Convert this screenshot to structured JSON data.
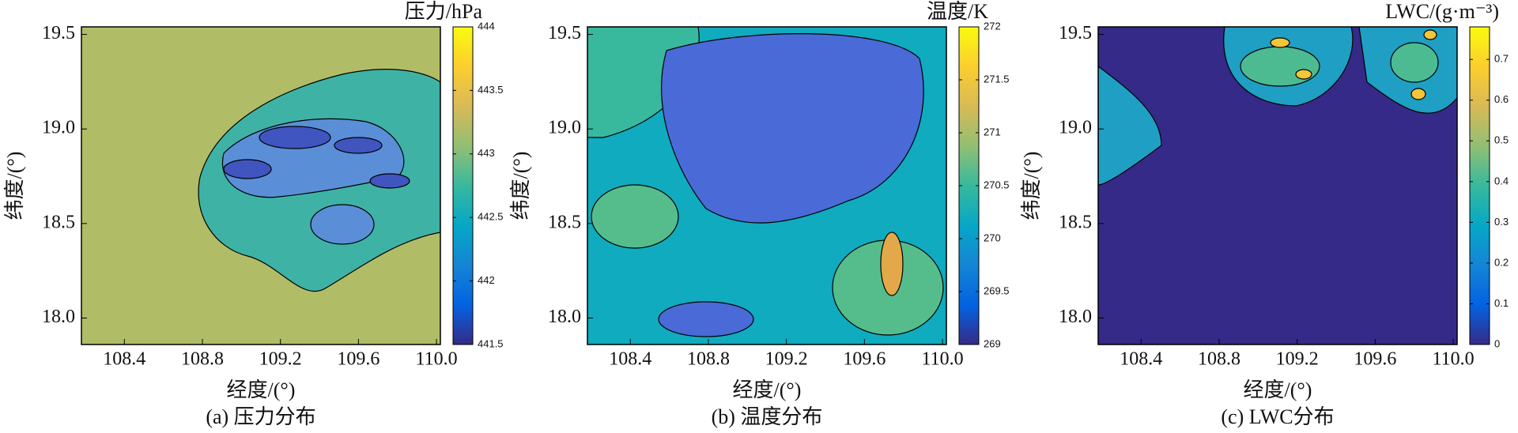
{
  "chart_data": [
    {
      "type": "contour",
      "title": "(a) 压力分布",
      "xlabel": "经度/(°)",
      "ylabel": "纬度/(°)",
      "colorbar_label": "压力/hPa",
      "xlim": [
        108.18,
        110.02
      ],
      "ylim": [
        17.86,
        19.54
      ],
      "xticks": [
        108.4,
        108.8,
        109.2,
        109.6,
        {
          "value": 110.0,
          "label": "110.0"
        }
      ],
      "yticks": [
        {
          "value": 18.0,
          "label": "18.0"
        },
        18.5,
        {
          "value": 19.0,
          "label": "19.0"
        },
        19.5
      ],
      "clim": [
        441.5,
        444
      ],
      "cticks": [
        441.5,
        442,
        442.5,
        443,
        443.5,
        444
      ],
      "base_value": 443.2
    },
    {
      "type": "contour",
      "title": "(b) 温度分布",
      "xlabel": "经度/(°)",
      "ylabel": "纬度/(°)",
      "colorbar_label": "温度/K",
      "xlim": [
        108.18,
        110.02
      ],
      "ylim": [
        17.86,
        19.54
      ],
      "xticks": [
        108.4,
        108.8,
        109.2,
        109.6,
        {
          "value": 110.0,
          "label": "110.0"
        }
      ],
      "yticks": [
        {
          "value": 18.0,
          "label": "18.0"
        },
        18.5,
        {
          "value": 19.0,
          "label": "19.0"
        },
        19.5
      ],
      "clim": [
        269,
        272
      ],
      "cticks": [
        269,
        269.5,
        270,
        270.5,
        271,
        271.5,
        272
      ],
      "base_value": 270.2
    },
    {
      "type": "contour",
      "title": "(c) LWC分布",
      "xlabel": "经度/(°)",
      "ylabel": "纬度/(°)",
      "colorbar_label": "LWC/(g·m⁻³)",
      "xlim": [
        108.18,
        110.02
      ],
      "ylim": [
        17.86,
        19.54
      ],
      "xticks": [
        108.4,
        108.8,
        109.2,
        109.6,
        {
          "value": 110.0,
          "label": "110.0"
        }
      ],
      "yticks": [
        {
          "value": 18.0,
          "label": "18.0"
        },
        18.5,
        {
          "value": 19.0,
          "label": "19.0"
        },
        19.5
      ],
      "clim": [
        0,
        0.78
      ],
      "cticks": [
        0,
        0.1,
        0.2,
        0.3,
        0.4,
        0.5,
        0.6,
        0.7
      ],
      "base_value": 0
    }
  ],
  "colormap": [
    "#352a87",
    "#0363e1",
    "#1485d4",
    "#06a7c6",
    "#38b99e",
    "#92bf73",
    "#d9ba56",
    "#fcce2e",
    "#f9fb0e"
  ]
}
